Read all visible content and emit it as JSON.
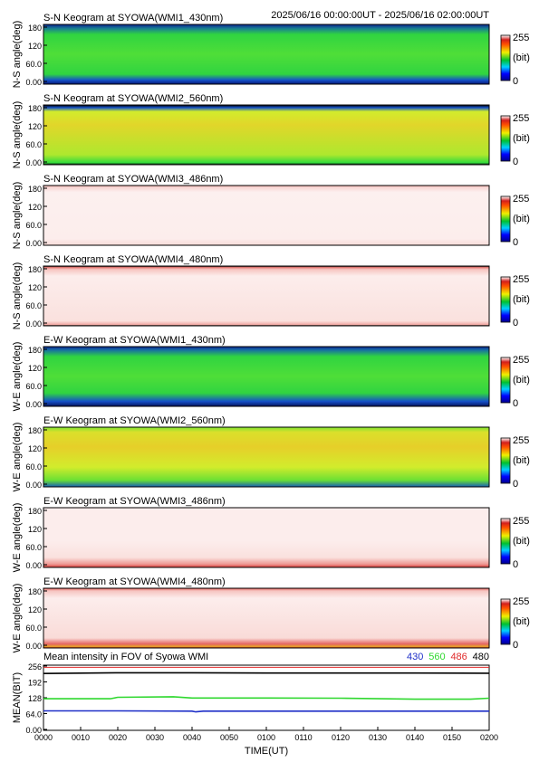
{
  "header": {
    "time_range": "2025/06/16 00:00:00UT - 2025/06/16 02:00:00UT"
  },
  "colorbar": {
    "max_label": "255",
    "min_label": "0",
    "unit_label": "(bit)"
  },
  "axes": {
    "ylabel_ns": "N-S angle(deg)",
    "ylabel_we": "W-E angle(deg)",
    "ylabel_mean": "MEAN(BIT)",
    "xlabel": "TIME(UT)"
  },
  "colors": {
    "black_band": "#000000",
    "dark_blue_band": "#0a1e8c",
    "green_keogram": "#33dc3c",
    "yellow_keogram": "#d2ec2c",
    "red_edge": "#d21f1c",
    "pale_pink_keogram": "#fbeceb",
    "series_430": "#1e2fc8",
    "series_560": "#2fd82f",
    "series_486": "#e02a2a",
    "series_480": "#000000"
  },
  "chart_data": [
    {
      "type": "heatmap",
      "panel": "SN-430",
      "title": "S-N Keogram at SYOWA(WMI1_430nm)",
      "ylabel": "N-S angle(deg)",
      "yticks": [
        "180",
        "120",
        "60.0",
        "0.00"
      ],
      "ylim": [
        0,
        180
      ],
      "colorbar": {
        "min": 0,
        "max": 255,
        "unit": "(bit)"
      },
      "profile": [
        {
          "angle": 0,
          "value": 10
        },
        {
          "angle": 12,
          "value": 40
        },
        {
          "angle": 30,
          "value": 95
        },
        {
          "angle": 90,
          "value": 110
        },
        {
          "angle": 150,
          "value": 95
        },
        {
          "angle": 168,
          "value": 55
        },
        {
          "angle": 180,
          "value": 15
        }
      ]
    },
    {
      "type": "heatmap",
      "panel": "SN-560",
      "title": "S-N Keogram at SYOWA(WMI2_560nm)",
      "ylabel": "N-S angle(deg)",
      "yticks": [
        "180",
        "120",
        "60.0",
        "0.00"
      ],
      "ylim": [
        0,
        180
      ],
      "colorbar": {
        "min": 0,
        "max": 255,
        "unit": "(bit)"
      },
      "profile": [
        {
          "angle": 0,
          "value": 0
        },
        {
          "angle": 6,
          "value": 100
        },
        {
          "angle": 30,
          "value": 140
        },
        {
          "angle": 120,
          "value": 165
        },
        {
          "angle": 160,
          "value": 150
        },
        {
          "angle": 172,
          "value": 40
        },
        {
          "angle": 180,
          "value": 0
        }
      ]
    },
    {
      "type": "heatmap",
      "panel": "SN-486",
      "title": "S-N Keogram at SYOWA(WMI3_486nm)",
      "ylabel": "N-S angle(deg)",
      "yticks": [
        "180",
        "120",
        "60.0",
        "0.00"
      ],
      "ylim": [
        0,
        180
      ],
      "colorbar": {
        "min": 0,
        "max": 255,
        "unit": "(bit)"
      },
      "profile": [
        {
          "angle": 0,
          "value": 240
        },
        {
          "angle": 20,
          "value": 250
        },
        {
          "angle": 160,
          "value": 252
        },
        {
          "angle": 175,
          "value": 238
        },
        {
          "angle": 180,
          "value": 225
        }
      ]
    },
    {
      "type": "heatmap",
      "panel": "SN-480",
      "title": "S-N Keogram at SYOWA(WMI4_480nm)",
      "ylabel": "N-S angle(deg)",
      "yticks": [
        "180",
        "120",
        "60.0",
        "0.00"
      ],
      "ylim": [
        0,
        180
      ],
      "colorbar": {
        "min": 0,
        "max": 255,
        "unit": "(bit)"
      },
      "profile": [
        {
          "angle": 0,
          "value": 0
        },
        {
          "angle": 3,
          "value": 225
        },
        {
          "angle": 15,
          "value": 242
        },
        {
          "angle": 150,
          "value": 250
        },
        {
          "angle": 170,
          "value": 232
        },
        {
          "angle": 176,
          "value": 215
        },
        {
          "angle": 180,
          "value": 0
        }
      ]
    },
    {
      "type": "heatmap",
      "panel": "EW-430",
      "title": "E-W Keogram at SYOWA(WMI1_430nm)",
      "ylabel": "W-E angle(deg)",
      "yticks": [
        "180",
        "120",
        "60.0",
        "0.00"
      ],
      "ylim": [
        0,
        180
      ],
      "colorbar": {
        "min": 0,
        "max": 255,
        "unit": "(bit)"
      },
      "profile": [
        {
          "angle": 0,
          "value": 8
        },
        {
          "angle": 15,
          "value": 40
        },
        {
          "angle": 40,
          "value": 95
        },
        {
          "angle": 90,
          "value": 110
        },
        {
          "angle": 150,
          "value": 95
        },
        {
          "angle": 170,
          "value": 50
        },
        {
          "angle": 180,
          "value": 15
        }
      ]
    },
    {
      "type": "heatmap",
      "panel": "EW-560",
      "title": "E-W Keogram at SYOWA(WMI2_560nm)",
      "ylabel": "W-E angle(deg)",
      "yticks": [
        "180",
        "120",
        "60.0",
        "0.00"
      ],
      "ylim": [
        0,
        180
      ],
      "colorbar": {
        "min": 0,
        "max": 255,
        "unit": "(bit)"
      },
      "profile": [
        {
          "angle": 0,
          "value": 45
        },
        {
          "angle": 20,
          "value": 120
        },
        {
          "angle": 60,
          "value": 150
        },
        {
          "angle": 120,
          "value": 170
        },
        {
          "angle": 165,
          "value": 158
        },
        {
          "angle": 178,
          "value": 130
        },
        {
          "angle": 180,
          "value": 120
        }
      ]
    },
    {
      "type": "heatmap",
      "panel": "EW-486",
      "title": "E-W Keogram at SYOWA(WMI3_486nm)",
      "ylabel": "W-E angle(deg)",
      "yticks": [
        "180",
        "120",
        "60.0",
        "0.00"
      ],
      "ylim": [
        0,
        180
      ],
      "colorbar": {
        "min": 0,
        "max": 255,
        "unit": "(bit)"
      },
      "profile": [
        {
          "angle": 0,
          "value": 205
        },
        {
          "angle": 10,
          "value": 222
        },
        {
          "angle": 30,
          "value": 242
        },
        {
          "angle": 80,
          "value": 250
        },
        {
          "angle": 180,
          "value": 250
        }
      ]
    },
    {
      "type": "heatmap",
      "panel": "EW-480",
      "title": "E-W Keogram at SYOWA(WMI4_480nm)",
      "ylabel": "W-E angle(deg)",
      "yticks": [
        "180",
        "120",
        "60.0",
        "0.00"
      ],
      "ylim": [
        0,
        180
      ],
      "colorbar": {
        "min": 0,
        "max": 255,
        "unit": "(bit)"
      },
      "profile": [
        {
          "angle": 0,
          "value": 200
        },
        {
          "angle": 4,
          "value": 180
        },
        {
          "angle": 12,
          "value": 212
        },
        {
          "angle": 30,
          "value": 240
        },
        {
          "angle": 150,
          "value": 250
        },
        {
          "angle": 172,
          "value": 232
        },
        {
          "angle": 178,
          "value": 215
        },
        {
          "angle": 180,
          "value": 45
        }
      ]
    },
    {
      "type": "line",
      "panel": "mean",
      "title": "Mean intensity in FOV of Syowa WMI",
      "xlabel": "TIME(UT)",
      "ylabel": "MEAN(BIT)",
      "x_ticks": [
        "0000",
        "0010",
        "0020",
        "0030",
        "0040",
        "0050",
        "0100",
        "0110",
        "0120",
        "0130",
        "0140",
        "0150",
        "0200"
      ],
      "yticks": [
        256,
        192,
        128,
        64.0,
        0.0
      ],
      "ytick_labels": [
        "256",
        "192",
        "128",
        "64.0",
        "0.00"
      ],
      "ylim": [
        0,
        256
      ],
      "xlim": [
        0,
        120
      ],
      "series": [
        {
          "name": "430",
          "color": "#1e2fc8",
          "x": [
            0,
            20,
            40,
            41,
            43,
            60,
            80,
            100,
            120
          ],
          "y": [
            75,
            75,
            74,
            71,
            74,
            74,
            74,
            74,
            74
          ]
        },
        {
          "name": "560",
          "color": "#2fd82f",
          "x": [
            0,
            18,
            20,
            35,
            40,
            60,
            80,
            100,
            115,
            120
          ],
          "y": [
            124,
            124,
            130,
            132,
            127,
            127,
            126,
            122,
            122,
            126
          ]
        },
        {
          "name": "486",
          "color": "#e02a2a",
          "x": [
            0,
            30,
            60,
            90,
            120
          ],
          "y": [
            251,
            251,
            251,
            251,
            251
          ]
        },
        {
          "name": "480",
          "color": "#000000",
          "x": [
            0,
            20,
            40,
            60,
            80,
            100,
            120
          ],
          "y": [
            226,
            229,
            229,
            228,
            228,
            228,
            227
          ]
        }
      ]
    }
  ]
}
